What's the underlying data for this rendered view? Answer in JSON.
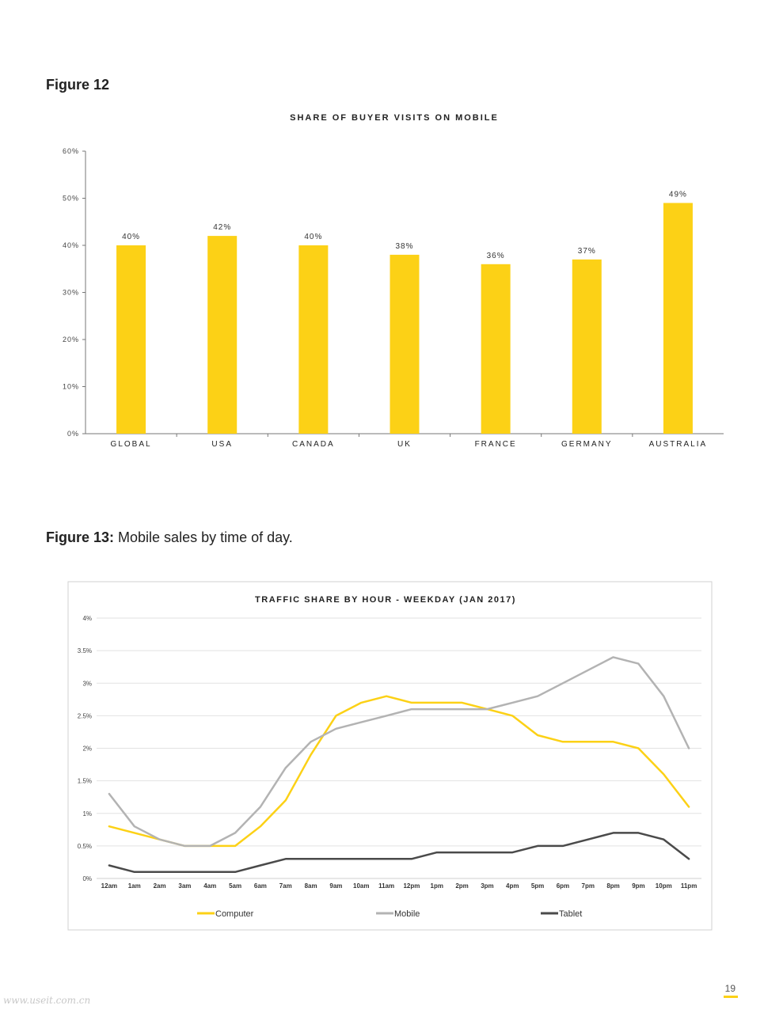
{
  "figures": {
    "fig12_label": "Figure 12",
    "fig13_label": "Figure 13:",
    "fig13_caption": " Mobile sales by time of day."
  },
  "page_number": "19",
  "watermark": "www.useit.com.cn",
  "colors": {
    "bar": "#fcd116",
    "computer": "#fcd116",
    "mobile": "#b3b3b3",
    "tablet": "#4a4a4a"
  },
  "chart_data": [
    {
      "type": "bar",
      "title": "SHARE OF BUYER VISITS ON MOBILE",
      "categories": [
        "GLOBAL",
        "USA",
        "CANADA",
        "UK",
        "FRANCE",
        "GERMANY",
        "AUSTRALIA"
      ],
      "values": [
        40,
        42,
        40,
        38,
        36,
        37,
        49
      ],
      "data_labels": [
        "40%",
        "42%",
        "40%",
        "38%",
        "36%",
        "37%",
        "49%"
      ],
      "ylim": [
        0,
        60
      ],
      "yticks": [
        "0%",
        "10%",
        "20%",
        "30%",
        "40%",
        "50%",
        "60%"
      ],
      "xlabel": "",
      "ylabel": "",
      "grid": false
    },
    {
      "type": "line",
      "title": "TRAFFIC SHARE BY HOUR - WEEKDAY (JAN 2017)",
      "x": [
        "12am",
        "1am",
        "2am",
        "3am",
        "4am",
        "5am",
        "6am",
        "7am",
        "8am",
        "9am",
        "10am",
        "11am",
        "12pm",
        "1pm",
        "2pm",
        "3pm",
        "4pm",
        "5pm",
        "6pm",
        "7pm",
        "8pm",
        "9pm",
        "10pm",
        "11pm"
      ],
      "series": [
        {
          "name": "Computer",
          "values": [
            0.8,
            0.7,
            0.6,
            0.5,
            0.5,
            0.5,
            0.8,
            1.2,
            1.9,
            2.5,
            2.7,
            2.8,
            2.7,
            2.7,
            2.7,
            2.6,
            2.5,
            2.2,
            2.1,
            2.1,
            2.1,
            2.0,
            1.6,
            1.1
          ]
        },
        {
          "name": "Mobile",
          "values": [
            1.3,
            0.8,
            0.6,
            0.5,
            0.5,
            0.7,
            1.1,
            1.7,
            2.1,
            2.3,
            2.4,
            2.5,
            2.6,
            2.6,
            2.6,
            2.6,
            2.7,
            2.8,
            3.0,
            3.2,
            3.4,
            3.3,
            2.8,
            2.0
          ]
        },
        {
          "name": "Tablet",
          "values": [
            0.2,
            0.1,
            0.1,
            0.1,
            0.1,
            0.1,
            0.2,
            0.3,
            0.3,
            0.3,
            0.3,
            0.3,
            0.3,
            0.4,
            0.4,
            0.4,
            0.4,
            0.5,
            0.5,
            0.6,
            0.7,
            0.7,
            0.6,
            0.3
          ]
        }
      ],
      "ylim": [
        0,
        4
      ],
      "yticks": [
        "0%",
        "0.5%",
        "1%",
        "1.5%",
        "2%",
        "2.5%",
        "3%",
        "3.5%",
        "4%"
      ],
      "xlabel": "",
      "ylabel": "",
      "grid": true,
      "legend": "bottom"
    }
  ]
}
